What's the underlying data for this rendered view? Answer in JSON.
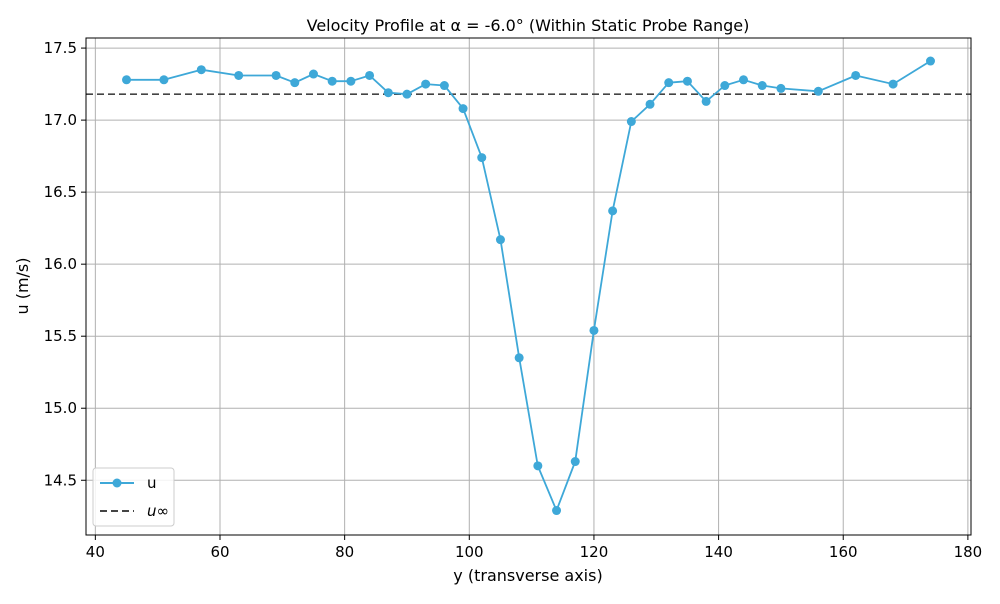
{
  "chart_data": {
    "type": "line",
    "title": "Velocity Profile at α = -6.0° (Within Static Probe Range)",
    "xlabel": "y (transverse axis)",
    "ylabel": "u (m/s)",
    "xlim": [
      38.5,
      180.5
    ],
    "ylim": [
      14.12,
      17.57
    ],
    "x_ticks": [
      40,
      60,
      80,
      100,
      120,
      140,
      160,
      180
    ],
    "y_ticks": [
      14.5,
      15.0,
      15.5,
      16.0,
      16.5,
      17.0,
      17.5
    ],
    "x_tick_labels": [
      "40",
      "60",
      "80",
      "100",
      "120",
      "140",
      "160",
      "180"
    ],
    "y_tick_labels": [
      "14.5",
      "15.0",
      "15.5",
      "16.0",
      "16.5",
      "17.0",
      "17.5"
    ],
    "grid": true,
    "legend_placement": "lower-left",
    "series": [
      {
        "name": "u",
        "color": "#3ea8d8",
        "marker": "circle",
        "x": [
          45,
          51,
          57,
          63,
          69,
          72,
          75,
          78,
          81,
          84,
          87,
          90,
          93,
          96,
          99,
          102,
          105,
          108,
          111,
          114,
          117,
          120,
          123,
          126,
          129,
          132,
          135,
          138,
          141,
          144,
          147,
          150,
          156,
          162,
          168,
          174
        ],
        "y": [
          17.28,
          17.28,
          17.35,
          17.31,
          17.31,
          17.26,
          17.32,
          17.27,
          17.27,
          17.31,
          17.19,
          17.18,
          17.25,
          17.24,
          17.08,
          16.74,
          16.17,
          15.35,
          14.6,
          14.29,
          14.63,
          15.54,
          16.37,
          16.99,
          17.11,
          17.26,
          17.27,
          17.13,
          17.24,
          17.28,
          17.24,
          17.22,
          17.2,
          17.31,
          17.25,
          17.41
        ]
      }
    ],
    "reference_lines": [
      {
        "name": "u∞",
        "orientation": "horizontal",
        "value": 17.18,
        "color": "#444444",
        "style": "dashed"
      }
    ]
  }
}
